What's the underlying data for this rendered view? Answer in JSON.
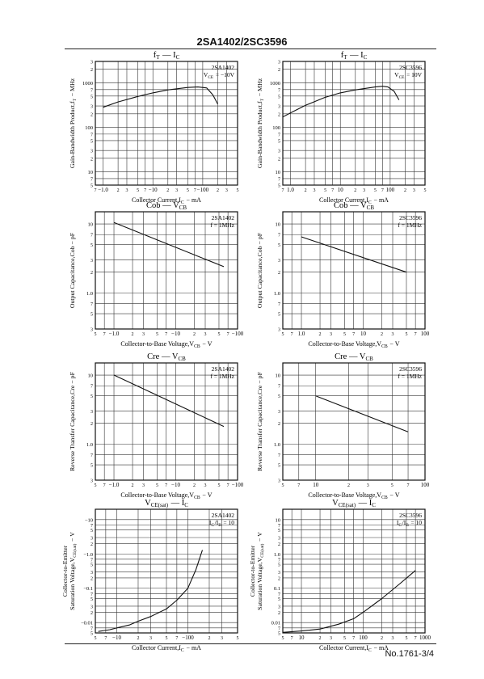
{
  "document": {
    "header_title": "2SA1402/2SC3596",
    "footer_text": "No.1761-3/4"
  },
  "chart_data": [
    {
      "type": "line",
      "title_main": "f",
      "title_main_sub": "T",
      "title_dash": "—",
      "title_var": "I",
      "title_var_sub": "C",
      "legend": [
        "2SA1402",
        "V_CE = −10V"
      ],
      "ylabel": "Gain-Bandwidth Product,f_T − MHz",
      "xlabel": "Collector Current,I_C − mA",
      "xscale": "log",
      "yscale": "log",
      "xlim": [
        0.7,
        500
      ],
      "ylim": [
        5,
        3000
      ],
      "xticks": [
        {
          "v": 1,
          "t": "−1.0"
        },
        {
          "v": 10,
          "t": "−10"
        },
        {
          "v": 100,
          "t": "−100"
        }
      ],
      "xminor": [
        {
          "v": 0.7,
          "t": "7"
        },
        {
          "v": 2,
          "t": "2"
        },
        {
          "v": 3,
          "t": "3"
        },
        {
          "v": 5,
          "t": "5"
        },
        {
          "v": 7,
          "t": "7"
        },
        {
          "v": 20,
          "t": "2"
        },
        {
          "v": 30,
          "t": "3"
        },
        {
          "v": 50,
          "t": "5"
        },
        {
          "v": 70,
          "t": "7"
        },
        {
          "v": 200,
          "t": "2"
        },
        {
          "v": 300,
          "t": "3"
        },
        {
          "v": 500,
          "t": "5"
        }
      ],
      "yticks": [
        {
          "v": 10,
          "t": "10"
        },
        {
          "v": 100,
          "t": "100"
        },
        {
          "v": 1000,
          "t": "1000"
        }
      ],
      "yminor": [
        {
          "v": 5,
          "t": "5"
        },
        {
          "v": 7,
          "t": "7"
        },
        {
          "v": 20,
          "t": "2"
        },
        {
          "v": 30,
          "t": "3"
        },
        {
          "v": 50,
          "t": "5"
        },
        {
          "v": 70,
          "t": "7"
        },
        {
          "v": 200,
          "t": "2"
        },
        {
          "v": 300,
          "t": "3"
        },
        {
          "v": 500,
          "t": "5"
        },
        {
          "v": 700,
          "t": "7"
        },
        {
          "v": 2000,
          "t": "2"
        },
        {
          "v": 3000,
          "t": "3"
        }
      ],
      "x": [
        1,
        2,
        5,
        10,
        20,
        50,
        80,
        120,
        160,
        200
      ],
      "y": [
        280,
        370,
        490,
        590,
        690,
        780,
        800,
        760,
        530,
        330
      ]
    },
    {
      "type": "line",
      "title_main": "f",
      "title_main_sub": "T",
      "title_dash": "—",
      "title_var": "I",
      "title_var_sub": "C",
      "legend": [
        "2SC3596",
        "V_CE = 10V"
      ],
      "ylabel": "Gain-Bandwidth Product,f_T − MHz",
      "xlabel": "Collector Current,I_C − mA",
      "xscale": "log",
      "yscale": "log",
      "xlim": [
        0.7,
        500
      ],
      "ylim": [
        5,
        3000
      ],
      "xticks": [
        {
          "v": 1,
          "t": "1.0"
        },
        {
          "v": 10,
          "t": "10"
        },
        {
          "v": 100,
          "t": "100"
        }
      ],
      "xminor": [
        {
          "v": 0.7,
          "t": "7"
        },
        {
          "v": 2,
          "t": "2"
        },
        {
          "v": 3,
          "t": "3"
        },
        {
          "v": 5,
          "t": "5"
        },
        {
          "v": 7,
          "t": "7"
        },
        {
          "v": 20,
          "t": "2"
        },
        {
          "v": 30,
          "t": "3"
        },
        {
          "v": 50,
          "t": "5"
        },
        {
          "v": 70,
          "t": "7"
        },
        {
          "v": 200,
          "t": "2"
        },
        {
          "v": 300,
          "t": "3"
        },
        {
          "v": 500,
          "t": "5"
        }
      ],
      "yticks": [
        {
          "v": 10,
          "t": "10"
        },
        {
          "v": 100,
          "t": "100"
        },
        {
          "v": 1000,
          "t": "1000"
        }
      ],
      "yminor": [
        {
          "v": 5,
          "t": "5"
        },
        {
          "v": 7,
          "t": "7"
        },
        {
          "v": 20,
          "t": "2"
        },
        {
          "v": 30,
          "t": "3"
        },
        {
          "v": 50,
          "t": "5"
        },
        {
          "v": 70,
          "t": "7"
        },
        {
          "v": 200,
          "t": "2"
        },
        {
          "v": 300,
          "t": "3"
        },
        {
          "v": 500,
          "t": "5"
        },
        {
          "v": 700,
          "t": "7"
        },
        {
          "v": 2000,
          "t": "2"
        },
        {
          "v": 3000,
          "t": "3"
        }
      ],
      "x": [
        0.7,
        1,
        2,
        5,
        10,
        20,
        50,
        70,
        90,
        120,
        150
      ],
      "y": [
        170,
        210,
        310,
        470,
        590,
        690,
        800,
        830,
        800,
        640,
        410
      ]
    },
    {
      "type": "line",
      "title_main": "Cob",
      "title_main_sub": "",
      "title_dash": "—",
      "title_var": "V",
      "title_var_sub": "CB",
      "legend": [
        "2SA1402",
        "f = 1MHz"
      ],
      "ylabel": "Output Capacitance,Cob − pF",
      "xlabel": "Collector-to-Base Voltage,V_CB − V",
      "xscale": "log",
      "yscale": "log",
      "xlim": [
        0.5,
        100
      ],
      "ylim": [
        0.3,
        15
      ],
      "xticks": [
        {
          "v": 1,
          "t": "−1.0"
        },
        {
          "v": 10,
          "t": "−10"
        },
        {
          "v": 100,
          "t": "−100"
        }
      ],
      "xminor": [
        {
          "v": 0.5,
          "t": "5"
        },
        {
          "v": 0.7,
          "t": "7"
        },
        {
          "v": 2,
          "t": "2"
        },
        {
          "v": 3,
          "t": "3"
        },
        {
          "v": 5,
          "t": "5"
        },
        {
          "v": 7,
          "t": "7"
        },
        {
          "v": 20,
          "t": "2"
        },
        {
          "v": 30,
          "t": "3"
        },
        {
          "v": 50,
          "t": "5"
        },
        {
          "v": 70,
          "t": "7"
        }
      ],
      "yticks": [
        {
          "v": 1,
          "t": "1.0"
        },
        {
          "v": 10,
          "t": "10"
        }
      ],
      "yminor": [
        {
          "v": 0.3,
          "t": "3"
        },
        {
          "v": 0.5,
          "t": "5"
        },
        {
          "v": 0.7,
          "t": "7"
        },
        {
          "v": 2,
          "t": "2"
        },
        {
          "v": 3,
          "t": "3"
        },
        {
          "v": 5,
          "t": "5"
        },
        {
          "v": 7,
          "t": "7"
        }
      ],
      "x": [
        1,
        60
      ],
      "y": [
        10.5,
        2.4
      ]
    },
    {
      "type": "line",
      "title_main": "Cob",
      "title_main_sub": "",
      "title_dash": "—",
      "title_var": "V",
      "title_var_sub": "CB",
      "legend": [
        "2SC3596",
        "f = 1MHz"
      ],
      "ylabel": "Output Capacitance,Cob − pF",
      "xlabel": "Collector-to-Base Voltage,V_CB − V",
      "xscale": "log",
      "yscale": "log",
      "xlim": [
        0.5,
        100
      ],
      "ylim": [
        0.3,
        15
      ],
      "xticks": [
        {
          "v": 1,
          "t": "1.0"
        },
        {
          "v": 10,
          "t": "10"
        },
        {
          "v": 100,
          "t": "100"
        }
      ],
      "xminor": [
        {
          "v": 0.5,
          "t": "5"
        },
        {
          "v": 0.7,
          "t": "7"
        },
        {
          "v": 2,
          "t": "2"
        },
        {
          "v": 3,
          "t": "3"
        },
        {
          "v": 5,
          "t": "5"
        },
        {
          "v": 7,
          "t": "7"
        },
        {
          "v": 20,
          "t": "2"
        },
        {
          "v": 30,
          "t": "3"
        },
        {
          "v": 50,
          "t": "5"
        },
        {
          "v": 70,
          "t": "7"
        }
      ],
      "yticks": [
        {
          "v": 1,
          "t": "1.0"
        },
        {
          "v": 10,
          "t": "10"
        }
      ],
      "yminor": [
        {
          "v": 0.3,
          "t": "3"
        },
        {
          "v": 0.5,
          "t": "5"
        },
        {
          "v": 0.7,
          "t": "7"
        },
        {
          "v": 2,
          "t": "2"
        },
        {
          "v": 3,
          "t": "3"
        },
        {
          "v": 5,
          "t": "5"
        },
        {
          "v": 7,
          "t": "7"
        }
      ],
      "x": [
        1,
        50
      ],
      "y": [
        6.5,
        2.0
      ]
    },
    {
      "type": "line",
      "title_main": "Cre",
      "title_main_sub": "",
      "title_dash": "—",
      "title_var": "V",
      "title_var_sub": "CB",
      "legend": [
        "2SA1402",
        "f = 1MHz"
      ],
      "ylabel": "Reverse Transfer Capacitance,Cre − pF",
      "xlabel": "Collector-to-Base Voltage,V_CB − V",
      "xscale": "log",
      "yscale": "log",
      "xlim": [
        0.5,
        100
      ],
      "ylim": [
        0.3,
        15
      ],
      "xticks": [
        {
          "v": 1,
          "t": "−1.0"
        },
        {
          "v": 10,
          "t": "−10"
        },
        {
          "v": 100,
          "t": "−100"
        }
      ],
      "xminor": [
        {
          "v": 0.5,
          "t": "5"
        },
        {
          "v": 0.7,
          "t": "7"
        },
        {
          "v": 2,
          "t": "2"
        },
        {
          "v": 3,
          "t": "3"
        },
        {
          "v": 5,
          "t": "5"
        },
        {
          "v": 7,
          "t": "7"
        },
        {
          "v": 20,
          "t": "2"
        },
        {
          "v": 30,
          "t": "3"
        },
        {
          "v": 50,
          "t": "5"
        },
        {
          "v": 70,
          "t": "7"
        }
      ],
      "yticks": [
        {
          "v": 1,
          "t": "1.0"
        },
        {
          "v": 10,
          "t": "10"
        }
      ],
      "yminor": [
        {
          "v": 0.3,
          "t": "3"
        },
        {
          "v": 0.5,
          "t": "5"
        },
        {
          "v": 0.7,
          "t": "7"
        },
        {
          "v": 2,
          "t": "2"
        },
        {
          "v": 3,
          "t": "3"
        },
        {
          "v": 5,
          "t": "5"
        },
        {
          "v": 7,
          "t": "7"
        }
      ],
      "x": [
        1,
        60
      ],
      "y": [
        10.0,
        1.8
      ]
    },
    {
      "type": "line",
      "title_main": "Cre",
      "title_main_sub": "",
      "title_dash": "—",
      "title_var": "V",
      "title_var_sub": "CB",
      "legend": [
        "2SC3596",
        "f = 1MHz"
      ],
      "ylabel": "Reverse Transfer Capacitance,Cre − pF",
      "xlabel": "Collector-to-Base Voltage,V_CB − V",
      "xscale": "log",
      "yscale": "log",
      "xlim": [
        5,
        100
      ],
      "ylim": [
        0.3,
        15
      ],
      "xticks": [
        {
          "v": 10,
          "t": "10"
        },
        {
          "v": 100,
          "t": "100"
        }
      ],
      "xminor": [
        {
          "v": 5,
          "t": "5"
        },
        {
          "v": 7,
          "t": "7"
        },
        {
          "v": 20,
          "t": "2"
        },
        {
          "v": 30,
          "t": "3"
        },
        {
          "v": 50,
          "t": "5"
        },
        {
          "v": 70,
          "t": "7"
        }
      ],
      "yticks": [
        {
          "v": 1,
          "t": "1.0"
        },
        {
          "v": 10,
          "t": "10"
        }
      ],
      "yminor": [
        {
          "v": 0.3,
          "t": "3"
        },
        {
          "v": 0.5,
          "t": "5"
        },
        {
          "v": 0.7,
          "t": "7"
        },
        {
          "v": 2,
          "t": "2"
        },
        {
          "v": 3,
          "t": "3"
        },
        {
          "v": 5,
          "t": "5"
        },
        {
          "v": 7,
          "t": "7"
        }
      ],
      "x": [
        10,
        70
      ],
      "y": [
        5.0,
        1.5
      ]
    },
    {
      "type": "line",
      "title_main": "V",
      "title_main_sub": "CE(sat)",
      "title_dash": "—",
      "title_var": "I",
      "title_var_sub": "C",
      "legend": [
        "2SA1402",
        "I_C/I_B = 10"
      ],
      "ylabel": "Collector-to-Emitter Saturation Voltage,V_CE(sat) − V",
      "xlabel": "Collector Current,I_C − mA",
      "xscale": "log",
      "yscale": "log",
      "xlim": [
        5,
        500
      ],
      "ylim": [
        0.005,
        20
      ],
      "xticks": [
        {
          "v": 10,
          "t": "−10"
        },
        {
          "v": 100,
          "t": "−100"
        }
      ],
      "xminor": [
        {
          "v": 5,
          "t": "5"
        },
        {
          "v": 7,
          "t": "7"
        },
        {
          "v": 20,
          "t": "2"
        },
        {
          "v": 30,
          "t": "3"
        },
        {
          "v": 50,
          "t": "5"
        },
        {
          "v": 70,
          "t": "7"
        },
        {
          "v": 200,
          "t": "2"
        },
        {
          "v": 300,
          "t": "3"
        },
        {
          "v": 500,
          "t": "5"
        }
      ],
      "yticks": [
        {
          "v": 0.01,
          "t": "−0.01"
        },
        {
          "v": 0.1,
          "t": "−0.1"
        },
        {
          "v": 1,
          "t": "−1.0"
        },
        {
          "v": 10,
          "t": "−10"
        }
      ],
      "yminor": [
        {
          "v": 0.005,
          "t": "5"
        },
        {
          "v": 0.007,
          "t": "7"
        },
        {
          "v": 0.02,
          "t": "2"
        },
        {
          "v": 0.03,
          "t": "3"
        },
        {
          "v": 0.05,
          "t": "5"
        },
        {
          "v": 0.07,
          "t": "7"
        },
        {
          "v": 0.2,
          "t": "2"
        },
        {
          "v": 0.3,
          "t": "3"
        },
        {
          "v": 0.5,
          "t": "5"
        },
        {
          "v": 0.7,
          "t": "7"
        },
        {
          "v": 2,
          "t": "2"
        },
        {
          "v": 3,
          "t": "3"
        },
        {
          "v": 5,
          "t": "5"
        },
        {
          "v": 7,
          "t": "7"
        }
      ],
      "x": [
        5.5,
        8,
        10,
        15,
        20,
        30,
        50,
        70,
        100,
        130,
        160
      ],
      "y": [
        0.0055,
        0.0062,
        0.007,
        0.0085,
        0.011,
        0.015,
        0.025,
        0.045,
        0.1,
        0.35,
        1.3
      ]
    },
    {
      "type": "line",
      "title_main": "V",
      "title_main_sub": "CE(sat)",
      "title_dash": "—",
      "title_var": "I",
      "title_var_sub": "C",
      "legend": [
        "2SC3596",
        "I_C/I_B = 10"
      ],
      "ylabel": "Collector-to-Emitter Saturation Voltage,V_CE(sat) − V",
      "xlabel": "Collector Current,I_C − mA",
      "xscale": "log",
      "yscale": "log",
      "xlim": [
        5,
        1000
      ],
      "ylim": [
        0.005,
        20
      ],
      "xticks": [
        {
          "v": 10,
          "t": "10"
        },
        {
          "v": 100,
          "t": "100"
        },
        {
          "v": 1000,
          "t": "1000"
        }
      ],
      "xminor": [
        {
          "v": 5,
          "t": "5"
        },
        {
          "v": 7,
          "t": "7"
        },
        {
          "v": 20,
          "t": "2"
        },
        {
          "v": 30,
          "t": "3"
        },
        {
          "v": 50,
          "t": "5"
        },
        {
          "v": 70,
          "t": "7"
        },
        {
          "v": 200,
          "t": "2"
        },
        {
          "v": 300,
          "t": "3"
        },
        {
          "v": 500,
          "t": "5"
        },
        {
          "v": 700,
          "t": "7"
        }
      ],
      "yticks": [
        {
          "v": 0.01,
          "t": "0.01"
        },
        {
          "v": 0.1,
          "t": "0.1"
        },
        {
          "v": 1,
          "t": "1.0"
        },
        {
          "v": 10,
          "t": "10"
        }
      ],
      "yminor": [
        {
          "v": 0.005,
          "t": "5"
        },
        {
          "v": 0.007,
          "t": "7"
        },
        {
          "v": 0.02,
          "t": "2"
        },
        {
          "v": 0.03,
          "t": "3"
        },
        {
          "v": 0.05,
          "t": "5"
        },
        {
          "v": 0.07,
          "t": "7"
        },
        {
          "v": 0.2,
          "t": "2"
        },
        {
          "v": 0.3,
          "t": "3"
        },
        {
          "v": 0.5,
          "t": "5"
        },
        {
          "v": 0.7,
          "t": "7"
        },
        {
          "v": 2,
          "t": "2"
        },
        {
          "v": 3,
          "t": "3"
        },
        {
          "v": 5,
          "t": "5"
        },
        {
          "v": 7,
          "t": "7"
        }
      ],
      "x": [
        5,
        10,
        20,
        40,
        70,
        100,
        200,
        400,
        700
      ],
      "y": [
        0.0052,
        0.0057,
        0.0065,
        0.009,
        0.013,
        0.02,
        0.05,
        0.14,
        0.33
      ]
    }
  ]
}
